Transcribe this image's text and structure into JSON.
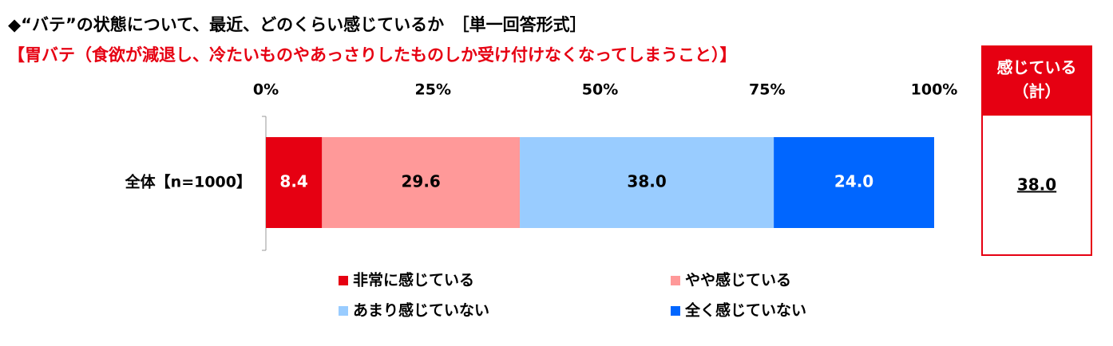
{
  "chart_data": {
    "type": "stacked_bar_h",
    "title": "◆“バテ”の状態について、最近、どのくらい感じているか　［単一回答形式］",
    "subtitle": "【胃バテ（食欲が減退し、冷たいものやあっさりしたものしか受け付けなくなってしまうこと）】",
    "categories": [
      "全体【n=1000】"
    ],
    "series": [
      {
        "name": "非常に感じている",
        "color": "#e60012",
        "values": [
          8.4
        ],
        "value_labels": [
          "8.4"
        ]
      },
      {
        "name": "やや感じている",
        "color": "#ff9999",
        "values": [
          29.6
        ],
        "value_labels": [
          "29.6"
        ]
      },
      {
        "name": "あまり感じていない",
        "color": "#99ccff",
        "values": [
          38.0
        ],
        "value_labels": [
          "38.0"
        ]
      },
      {
        "name": "全く感じていない",
        "color": "#0066ff",
        "values": [
          24.0
        ],
        "value_labels": [
          "24.0"
        ]
      }
    ],
    "xlim": [
      0,
      100
    ],
    "xticks": [
      {
        "value": 0,
        "label": "0%"
      },
      {
        "value": 25,
        "label": "25%"
      },
      {
        "value": 50,
        "label": "50%"
      },
      {
        "value": 75,
        "label": "75%"
      },
      {
        "value": 100,
        "label": "100%"
      }
    ],
    "total": {
      "header": [
        "感じている",
        "（計）"
      ],
      "values": [
        38.0
      ],
      "value_labels": [
        "38.0"
      ],
      "color": "#e60012"
    }
  }
}
